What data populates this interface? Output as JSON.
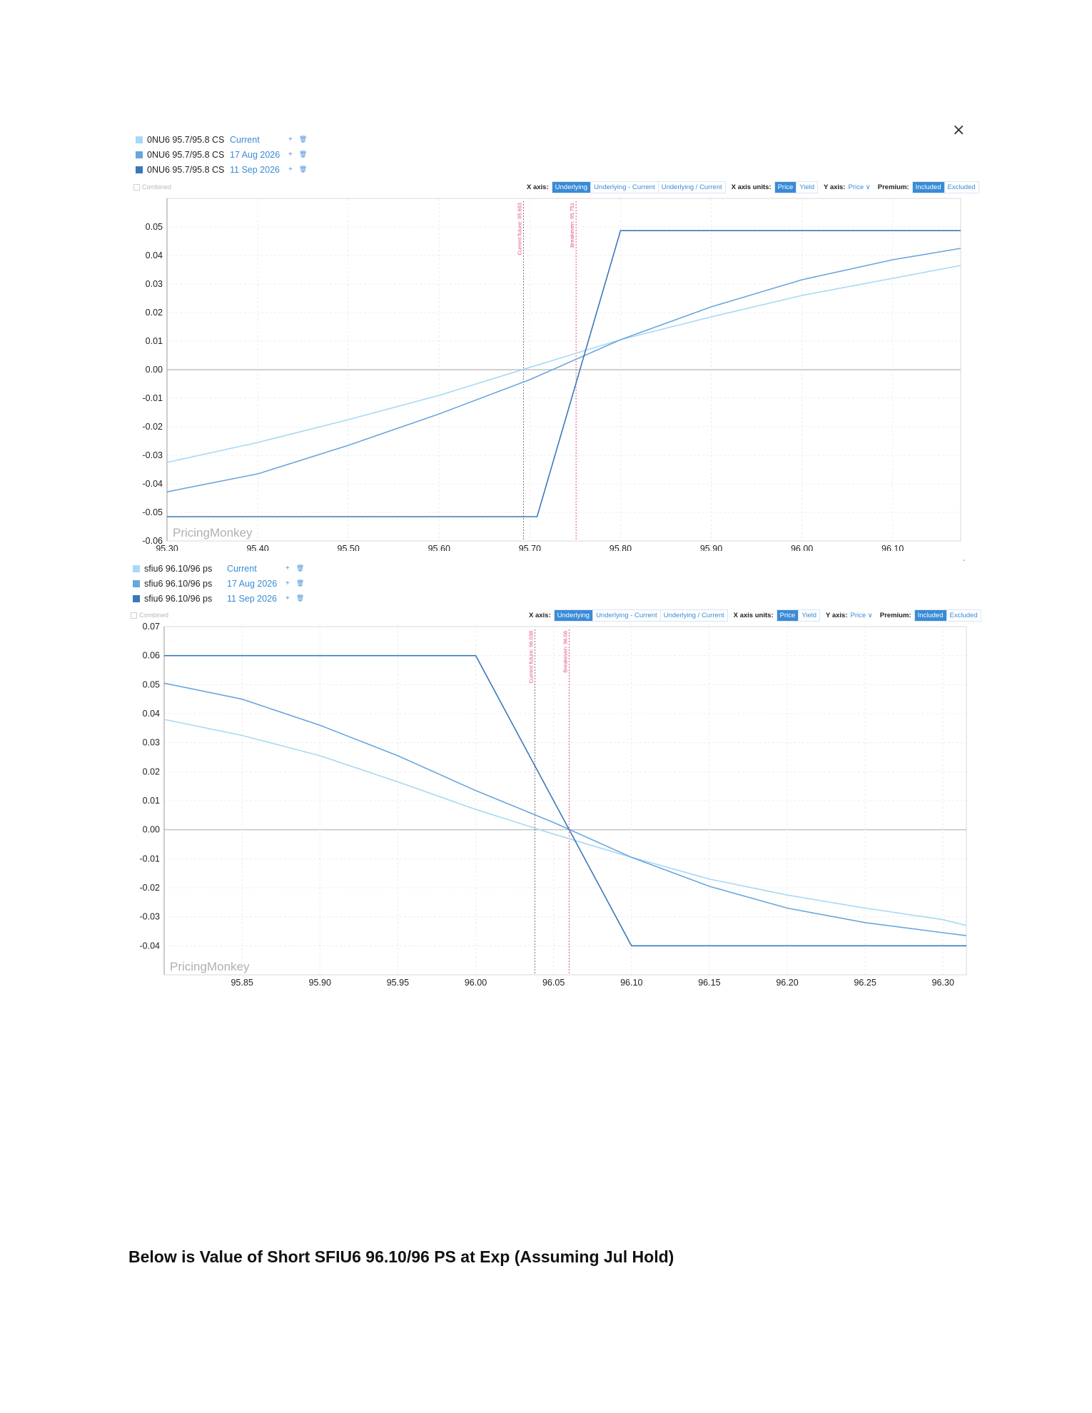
{
  "close_label": "×",
  "corner_mark": "ˊ",
  "caption": "Below is Value of Short SFIU6 96.10/96 PS at Exp (Assuming Jul Hold)",
  "toolbar": {
    "xaxis_label": "X axis:",
    "xaxis_options": [
      "Underlying",
      "Underlying - Current",
      "Underlying / Current"
    ],
    "xaxis_selected": "Underlying",
    "xunits_label": "X axis units:",
    "xunits_options": [
      "Price",
      "Yield"
    ],
    "xunits_selected": "Price",
    "yaxis_label": "Y axis:",
    "yaxis_value": "Price",
    "premium_label": "Premium:",
    "premium_options": [
      "Included",
      "Excluded"
    ],
    "premium_selected": "Included",
    "combined_label": "Combined",
    "plus_icon": "+",
    "trash_icon": "🗑"
  },
  "colors": {
    "current": "#a8d8f5",
    "mid": "#6aa6dc",
    "expiry": "#3b78b8",
    "marker": "#e0507a",
    "accent": "#3a8bd6"
  },
  "chart_data": [
    {
      "type": "line",
      "watermark": "PricingMonkey",
      "legend": [
        {
          "name": "0NU6 95.7/95.8 CS",
          "date": "Current"
        },
        {
          "name": "0NU6 95.7/95.8 CS",
          "date": "17 Aug 2026"
        },
        {
          "name": "0NU6 95.7/95.8 CS",
          "date": "11 Sep 2026"
        }
      ],
      "xlim": [
        95.3,
        96.175
      ],
      "ylim": [
        -0.06,
        0.06
      ],
      "xticks": [
        "95.30",
        "95.40",
        "95.50",
        "95.60",
        "95.70",
        "95.80",
        "95.90",
        "96.00",
        "96.10"
      ],
      "yticks": [
        "0.05",
        "0.04",
        "0.03",
        "0.02",
        "0.01",
        "0.00",
        "-0.01",
        "-0.02",
        "-0.03",
        "-0.04",
        "-0.05",
        "-0.06"
      ],
      "xtick_values": [
        95.3,
        95.4,
        95.5,
        95.6,
        95.7,
        95.8,
        95.9,
        96.0,
        96.1
      ],
      "ytick_values": [
        0.05,
        0.04,
        0.03,
        0.02,
        0.01,
        0.0,
        -0.01,
        -0.02,
        -0.03,
        -0.04,
        -0.05,
        -0.06
      ],
      "markers": [
        {
          "x": 95.693,
          "label": "Current future: 95.693"
        },
        {
          "x": 95.751,
          "label": "Breakeven: 95.751"
        }
      ],
      "series": [
        {
          "name": "0NU6 95.7/95.8 CS Current",
          "x": [
            95.3,
            95.4,
            95.5,
            95.6,
            95.7,
            95.8,
            95.9,
            96.0,
            96.1,
            96.175
          ],
          "y": [
            -0.0325,
            -0.0255,
            -0.0175,
            -0.009,
            0.0008,
            0.0105,
            0.0185,
            0.026,
            0.032,
            0.0365
          ]
        },
        {
          "name": "0NU6 95.7/95.8 CS 17 Aug 2026",
          "x": [
            95.3,
            95.4,
            95.5,
            95.6,
            95.7,
            95.8,
            95.9,
            96.0,
            96.1,
            96.175
          ],
          "y": [
            -0.0428,
            -0.0365,
            -0.0265,
            -0.0155,
            -0.0035,
            0.0105,
            0.022,
            0.0315,
            0.0385,
            0.0425
          ]
        },
        {
          "name": "0NU6 95.7/95.8 CS 11 Sep 2026",
          "x": [
            95.3,
            95.708,
            95.8,
            96.175
          ],
          "y": [
            -0.0515,
            -0.0515,
            0.0487,
            0.0487
          ]
        }
      ]
    },
    {
      "type": "line",
      "watermark": "PricingMonkey",
      "legend": [
        {
          "name": "sfiu6 96.10/96 ps",
          "date": "Current"
        },
        {
          "name": "sfiu6 96.10/96 ps",
          "date": "17 Aug 2026"
        },
        {
          "name": "sfiu6 96.10/96 ps",
          "date": "11 Sep 2026"
        }
      ],
      "xlim": [
        95.8,
        96.315
      ],
      "ylim": [
        -0.05,
        0.07
      ],
      "xticks": [
        "95.85",
        "95.90",
        "95.95",
        "96.00",
        "96.05",
        "96.10",
        "96.15",
        "96.20",
        "96.25",
        "96.30"
      ],
      "yticks": [
        "0.07",
        "0.06",
        "0.05",
        "0.04",
        "0.03",
        "0.02",
        "0.01",
        "0.00",
        "-0.01",
        "-0.02",
        "-0.03",
        "-0.04"
      ],
      "xtick_values": [
        95.85,
        95.9,
        95.95,
        96.0,
        96.05,
        96.1,
        96.15,
        96.2,
        96.25,
        96.3
      ],
      "ytick_values": [
        0.07,
        0.06,
        0.05,
        0.04,
        0.03,
        0.02,
        0.01,
        0.0,
        -0.01,
        -0.02,
        -0.03,
        -0.04
      ],
      "markers": [
        {
          "x": 96.038,
          "label": "Current future: 96.038"
        },
        {
          "x": 96.06,
          "label": "Breakeven: 96.06"
        }
      ],
      "series": [
        {
          "name": "sfiu6 96.10/96 ps Current",
          "x": [
            95.8,
            95.85,
            95.9,
            95.95,
            96.0,
            96.05,
            96.1,
            96.15,
            96.2,
            96.25,
            96.3,
            96.315
          ],
          "y": [
            0.038,
            0.0325,
            0.0255,
            0.0165,
            0.007,
            -0.0015,
            -0.0095,
            -0.017,
            -0.0225,
            -0.027,
            -0.031,
            -0.033
          ]
        },
        {
          "name": "sfiu6 96.10/96 ps 17 Aug 2026",
          "x": [
            95.8,
            95.85,
            95.9,
            95.95,
            96.0,
            96.05,
            96.1,
            96.15,
            96.2,
            96.25,
            96.3,
            96.315
          ],
          "y": [
            0.0505,
            0.045,
            0.036,
            0.0255,
            0.0135,
            0.0025,
            -0.0095,
            -0.0195,
            -0.027,
            -0.032,
            -0.0355,
            -0.0365
          ]
        },
        {
          "name": "sfiu6 96.10/96 ps 11 Sep 2026",
          "x": [
            95.8,
            96.0,
            96.1,
            96.315
          ],
          "y": [
            0.06,
            0.06,
            -0.04,
            -0.04
          ]
        }
      ]
    }
  ]
}
